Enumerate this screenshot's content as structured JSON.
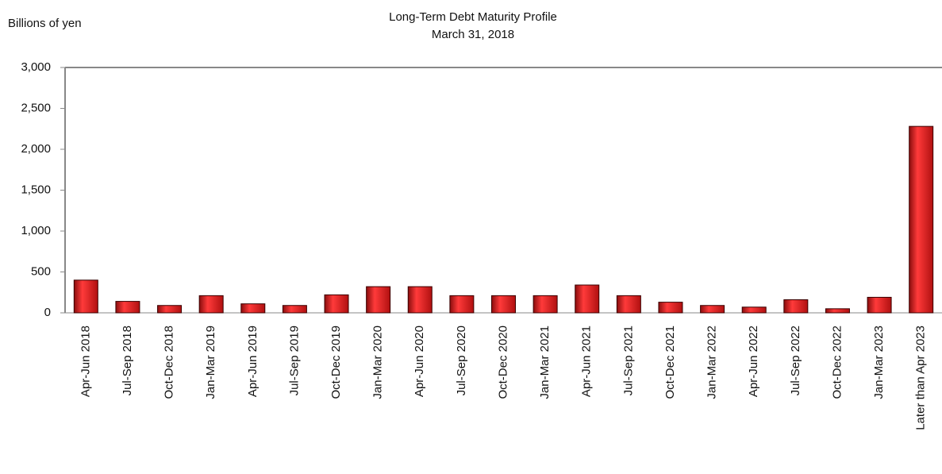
{
  "chart_data": {
    "type": "bar",
    "title": "Long-Term Debt Maturity Profile",
    "subtitle": "March 31, 2018",
    "y_label": "Billions of yen",
    "categories": [
      "Apr-Jun 2018",
      "Jul-Sep 2018",
      "Oct-Dec 2018",
      "Jan-Mar 2019",
      "Apr-Jun 2019",
      "Jul-Sep 2019",
      "Oct-Dec 2019",
      "Jan-Mar 2020",
      "Apr-Jun 2020",
      "Jul-Sep 2020",
      "Oct-Dec 2020",
      "Jan-Mar 2021",
      "Apr-Jun 2021",
      "Jul-Sep 2021",
      "Oct-Dec 2021",
      "Jan-Mar 2022",
      "Apr-Jun 2022",
      "Jul-Sep 2022",
      "Oct-Dec 2022",
      "Jan-Mar 2023",
      "Later than Apr 2023"
    ],
    "values": [
      400,
      140,
      90,
      210,
      110,
      90,
      220,
      320,
      320,
      210,
      210,
      210,
      340,
      210,
      130,
      90,
      70,
      160,
      50,
      190,
      2280
    ],
    "color": "#d81e1e",
    "ylim": [
      0,
      3000
    ],
    "yticks": [
      0,
      500,
      {
        "value": 1000,
        "label": "1,000"
      },
      {
        "value": 1500,
        "label": "1,500"
      },
      {
        "value": 2000,
        "label": "2,000"
      },
      {
        "value": 2500,
        "label": "2,500"
      },
      {
        "value": 3000,
        "label": "3,000"
      }
    ],
    "grid": false
  }
}
